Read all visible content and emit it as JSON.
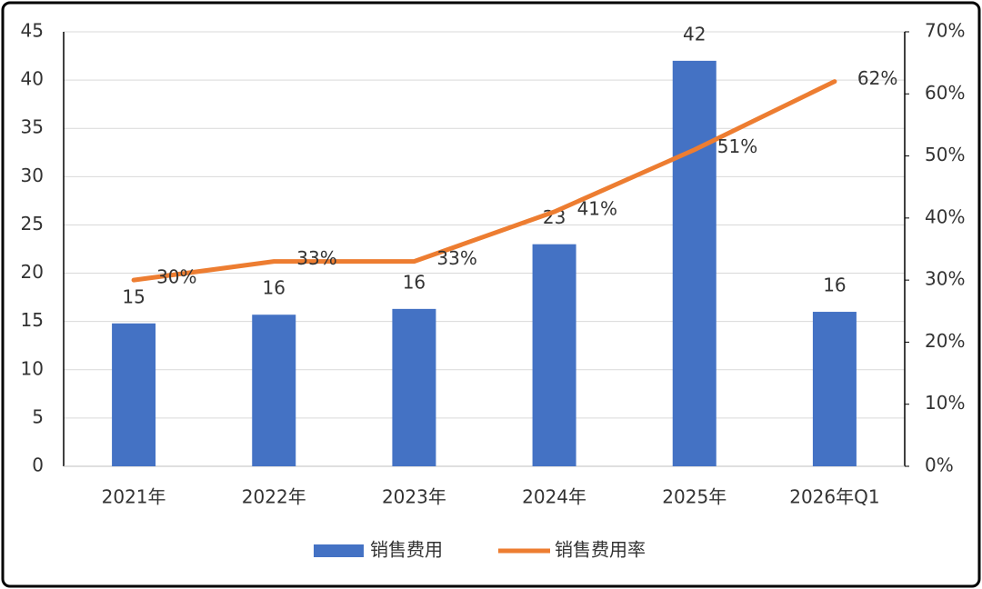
{
  "chart_data": {
    "type": "bar",
    "categories": [
      "2021年",
      "2022年",
      "2023年",
      "2024年",
      "2025年",
      "2026年Q1"
    ],
    "series": [
      {
        "name": "销售费用",
        "type": "bar",
        "color": "#4472c4",
        "values": [
          14.8,
          15.7,
          16.3,
          23,
          42,
          16
        ],
        "value_labels": [
          "15",
          "16",
          "16",
          "23",
          "42",
          "16"
        ]
      },
      {
        "name": "销售费用率",
        "type": "line",
        "axis": "y2",
        "color": "#ed7d31",
        "values": [
          30,
          33,
          33,
          41,
          51,
          62
        ],
        "value_labels": [
          "30%",
          "33%",
          "33%",
          "41%",
          "51%",
          "62%"
        ]
      }
    ],
    "ylim": [
      0,
      45
    ],
    "yticks": [
      0,
      5,
      10,
      15,
      20,
      25,
      30,
      35,
      40,
      45
    ],
    "y2lim": [
      0,
      70
    ],
    "y2ticks": [
      {
        "value": 0,
        "label": "0%"
      },
      {
        "value": 10,
        "label": "10%"
      },
      {
        "value": 20,
        "label": "20%"
      },
      {
        "value": 30,
        "label": "30%"
      },
      {
        "value": 40,
        "label": "40%"
      },
      {
        "value": 50,
        "label": "50%"
      },
      {
        "value": 60,
        "label": "60%"
      },
      {
        "value": 70,
        "label": "70%"
      }
    ],
    "grid": true,
    "legend": "bottom"
  }
}
